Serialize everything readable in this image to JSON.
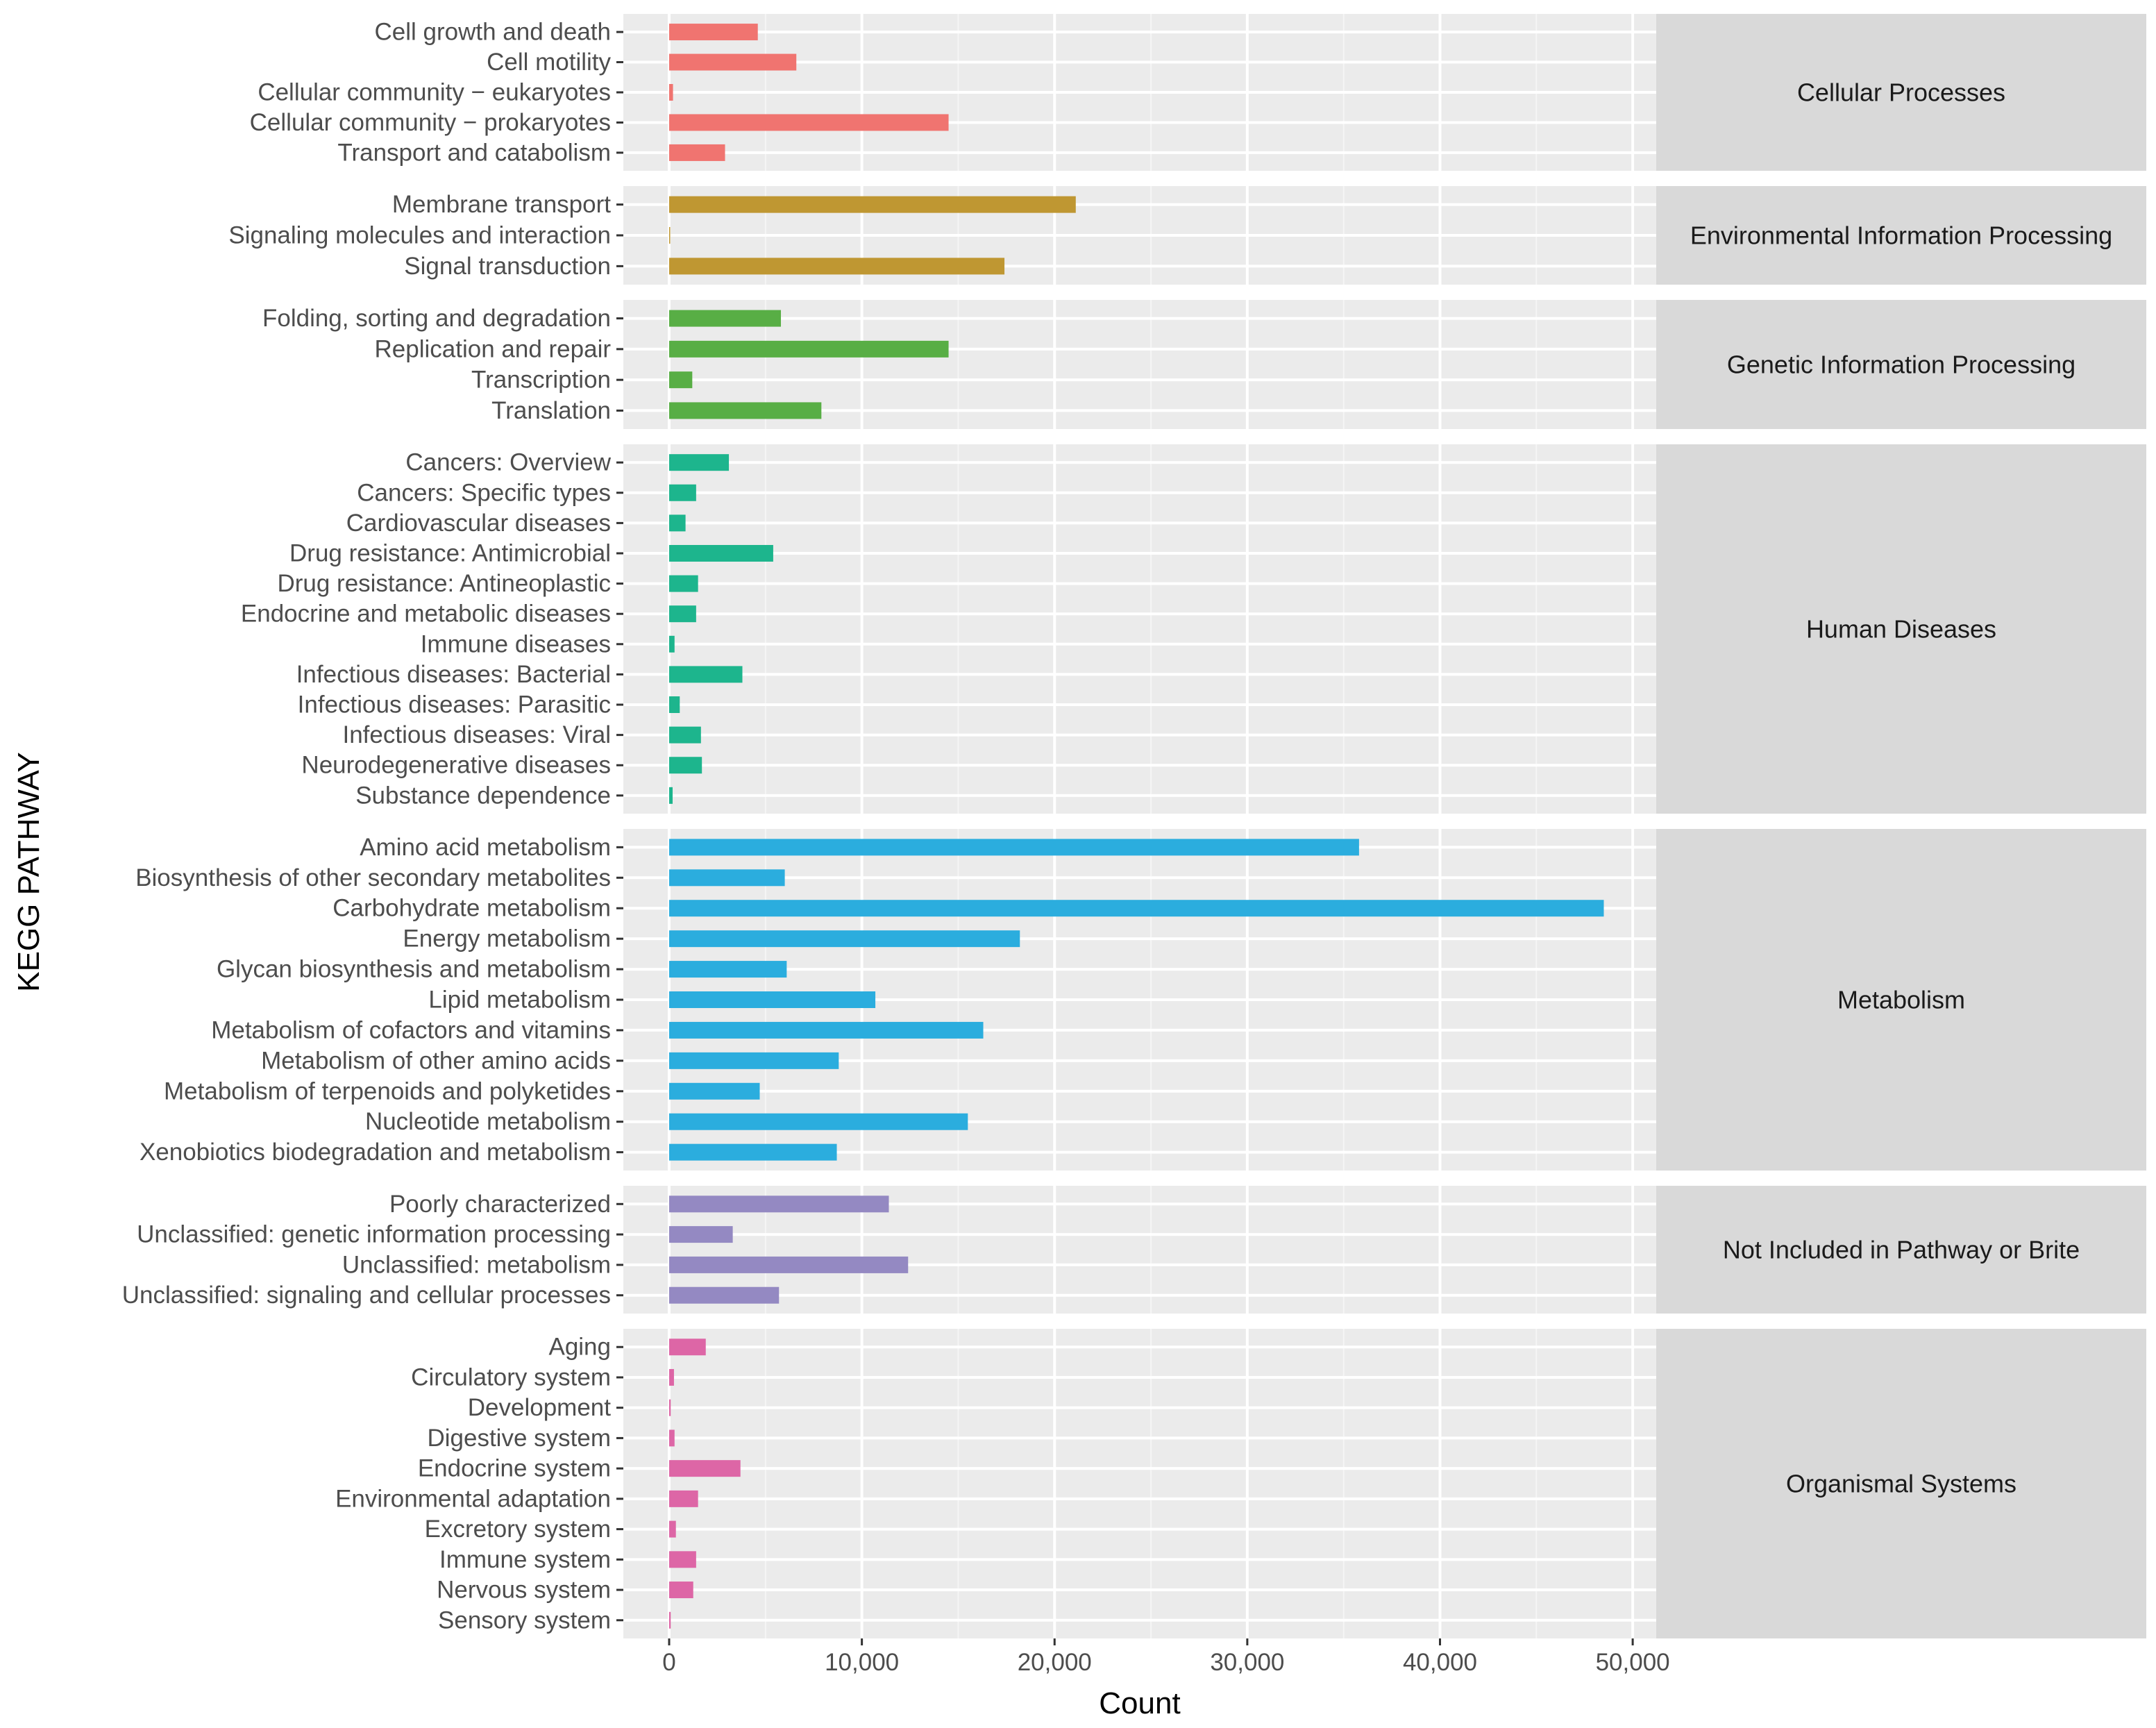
{
  "chart_data": {
    "type": "bar",
    "orientation": "horizontal",
    "xlabel": "Count",
    "ylabel": "KEGG PATHWAY",
    "xlim": [
      0,
      50500
    ],
    "xticks": [
      0,
      10000,
      20000,
      30000,
      40000,
      50000
    ],
    "xtick_labels": [
      "0",
      "10,000",
      "20,000",
      "30,000",
      "40,000",
      "50,000"
    ],
    "grid": true,
    "panels": [
      {
        "label": "Cellular Processes",
        "color": "#F07470",
        "categories": [
          "Cell growth and death",
          "Cell motility",
          "Cellular community − eukaryotes",
          "Cellular community − prokaryotes",
          "Transport and catabolism"
        ],
        "values": [
          4600,
          6600,
          200,
          14500,
          2900
        ]
      },
      {
        "label": "Environmental Information Processing",
        "color": "#BF9732",
        "categories": [
          "Membrane transport",
          "Signaling molecules and interaction",
          "Signal transduction"
        ],
        "values": [
          21100,
          50,
          17400
        ]
      },
      {
        "label": "Genetic Information Processing",
        "color": "#58AE45",
        "categories": [
          "Folding, sorting and degradation",
          "Replication and repair",
          "Transcription",
          "Translation"
        ],
        "values": [
          5800,
          14500,
          1200,
          7900
        ]
      },
      {
        "label": "Human Diseases",
        "color": "#1DB58D",
        "categories": [
          "Cancers: Overview",
          "Cancers: Specific types",
          "Cardiovascular diseases",
          "Drug resistance: Antimicrobial",
          "Drug resistance: Antineoplastic",
          "Endocrine and metabolic diseases",
          "Immune diseases",
          "Infectious diseases: Bacterial",
          "Infectious diseases: Parasitic",
          "Infectious diseases: Viral",
          "Neurodegenerative diseases",
          "Substance dependence"
        ],
        "values": [
          3100,
          1400,
          850,
          5400,
          1500,
          1400,
          280,
          3800,
          550,
          1650,
          1700,
          180
        ]
      },
      {
        "label": "Metabolism",
        "color": "#2BADDE",
        "categories": [
          "Amino acid metabolism",
          "Biosynthesis of other secondary metabolites",
          "Carbohydrate metabolism",
          "Energy metabolism",
          "Glycan biosynthesis and metabolism",
          "Lipid metabolism",
          "Metabolism of cofactors and vitamins",
          "Metabolism of other amino acids",
          "Metabolism of terpenoids and polyketides",
          "Nucleotide metabolism",
          "Xenobiotics biodegradation and metabolism"
        ],
        "values": [
          35800,
          6000,
          48500,
          18200,
          6100,
          10700,
          16300,
          8800,
          4700,
          15500,
          8700
        ]
      },
      {
        "label": "Not Included in Pathway or Brite",
        "color": "#9489C2",
        "categories": [
          "Poorly characterized",
          "Unclassified: genetic information processing",
          "Unclassified: metabolism",
          "Unclassified: signaling and cellular processes"
        ],
        "values": [
          11400,
          3300,
          12400,
          5700
        ]
      },
      {
        "label": "Organismal Systems",
        "color": "#DD66A6",
        "categories": [
          "Aging",
          "Circulatory system",
          "Development",
          "Digestive system",
          "Endocrine system",
          "Environmental adaptation",
          "Excretory system",
          "Immune system",
          "Nervous system",
          "Sensory system"
        ],
        "values": [
          1900,
          250,
          80,
          280,
          3700,
          1500,
          350,
          1400,
          1250,
          80
        ]
      }
    ]
  }
}
